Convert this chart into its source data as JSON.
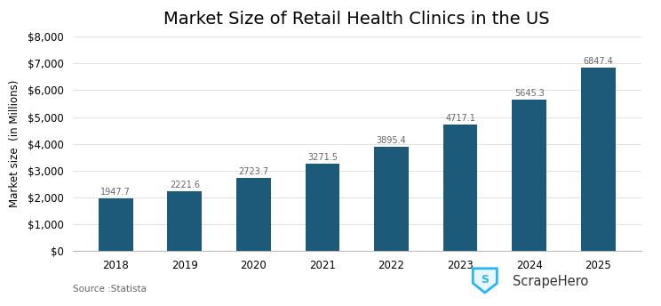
{
  "title": "Market Size of Retail Health Clinics in the US",
  "years": [
    2018,
    2019,
    2020,
    2021,
    2022,
    2023,
    2024,
    2025
  ],
  "values": [
    1947.7,
    2221.6,
    2723.7,
    3271.5,
    3895.4,
    4717.1,
    5645.3,
    6847.4
  ],
  "bar_color": "#1d5a7a",
  "ylabel": "Market size  (in Millions)",
  "ylim": [
    0,
    8000
  ],
  "yticks": [
    0,
    1000,
    2000,
    3000,
    4000,
    5000,
    6000,
    7000,
    8000
  ],
  "source_text": "Source :Statista",
  "background_color": "#ffffff",
  "bar_width": 0.5,
  "annotation_fontsize": 7.0,
  "annotation_color": "#666666",
  "title_fontsize": 14,
  "ylabel_fontsize": 8.5,
  "tick_fontsize": 8.5,
  "shield_color": "#4fc3f7",
  "shield_border": "#29b6f6",
  "scrape_hero_color": "#333333"
}
